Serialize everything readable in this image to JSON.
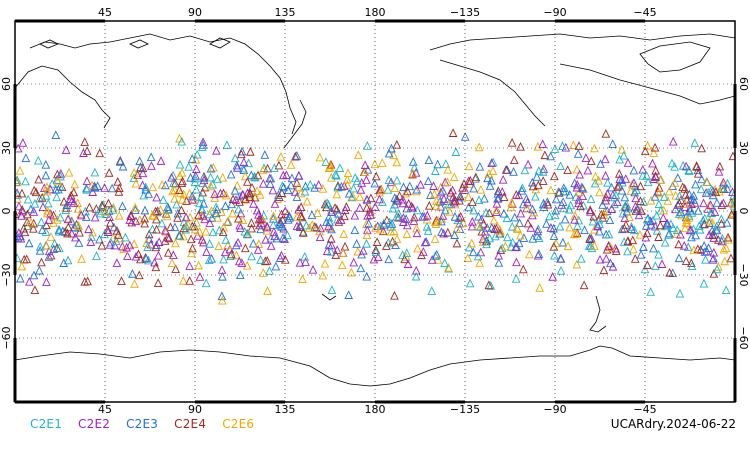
{
  "map": {
    "lon_ticks_top": [
      "45",
      "90",
      "135",
      "180",
      "−135",
      "−90",
      "−45"
    ],
    "lon_ticks_bottom": [
      "45",
      "90",
      "135",
      "180",
      "−135",
      "−90",
      "−45"
    ],
    "lat_ticks_left": [
      "60",
      "30",
      "0",
      "−30",
      "−60"
    ],
    "lat_ticks_right": [
      "60",
      "30",
      "0",
      "−30",
      "−60"
    ]
  },
  "legend": [
    {
      "label": "C2E1",
      "color": "#1eb4c8"
    },
    {
      "label": "C2E2",
      "color": "#a020c8"
    },
    {
      "label": "C2E3",
      "color": "#2070e0"
    },
    {
      "label": "C2E4",
      "color": "#a0281e"
    },
    {
      "label": "C2E6",
      "color": "#f0a800"
    }
  ],
  "footer_id": "UCARdry.2024-06-22"
}
